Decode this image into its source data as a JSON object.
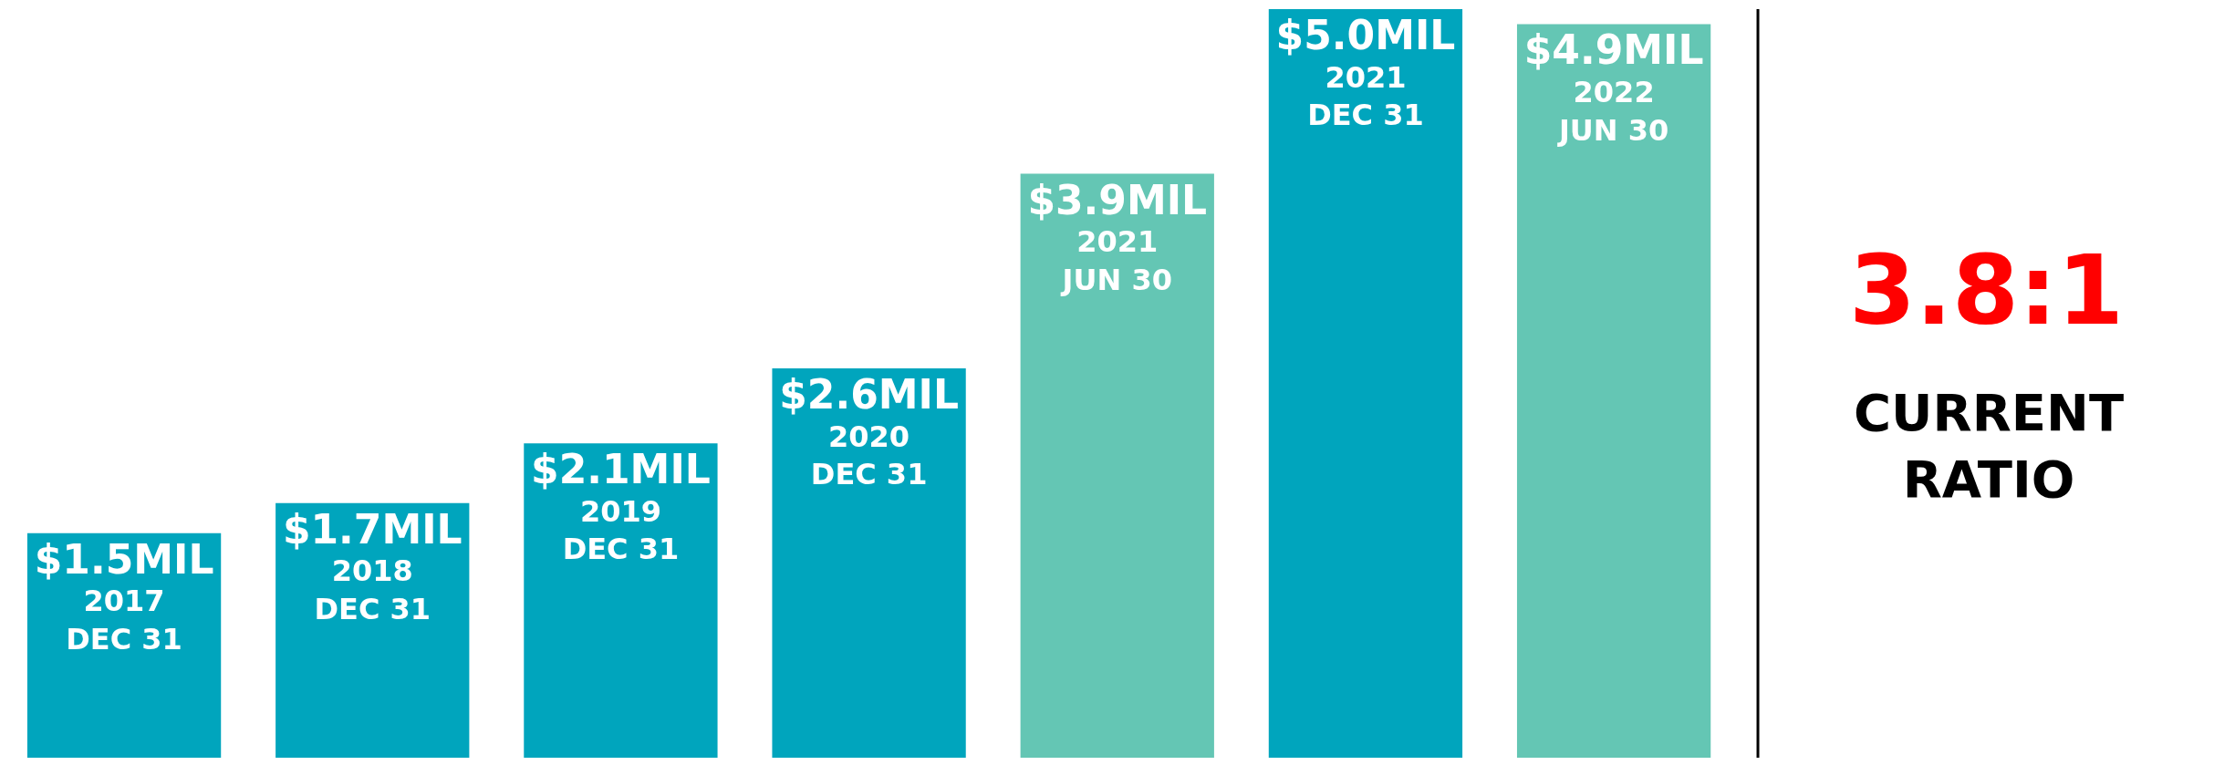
{
  "chart_data": {
    "type": "bar",
    "categories": [
      "2017\nDEC 31",
      "2018\nDEC 31",
      "2019\nDEC 31",
      "2020\nDEC 31",
      "2021\nJUN 30",
      "2021\nDEC 31",
      "2022\nJUN 30"
    ],
    "values": [
      1.5,
      1.7,
      2.1,
      2.6,
      3.9,
      5.0,
      4.9
    ],
    "colors": [
      "#00a5bd",
      "#00a5bd",
      "#00a5bd",
      "#00a5bd",
      "#64c6b4",
      "#00a5bd",
      "#64c6b4"
    ],
    "value_labels": [
      "$1.5MIL",
      "$1.7MIL",
      "$2.1MIL",
      "$2.6MIL",
      "$3.9MIL",
      "$5.0MIL",
      "$4.9MIL"
    ],
    "tick_labels": false,
    "legend": false,
    "annotations": [
      "3.8:1",
      "CURRENT RATIO"
    ]
  }
}
